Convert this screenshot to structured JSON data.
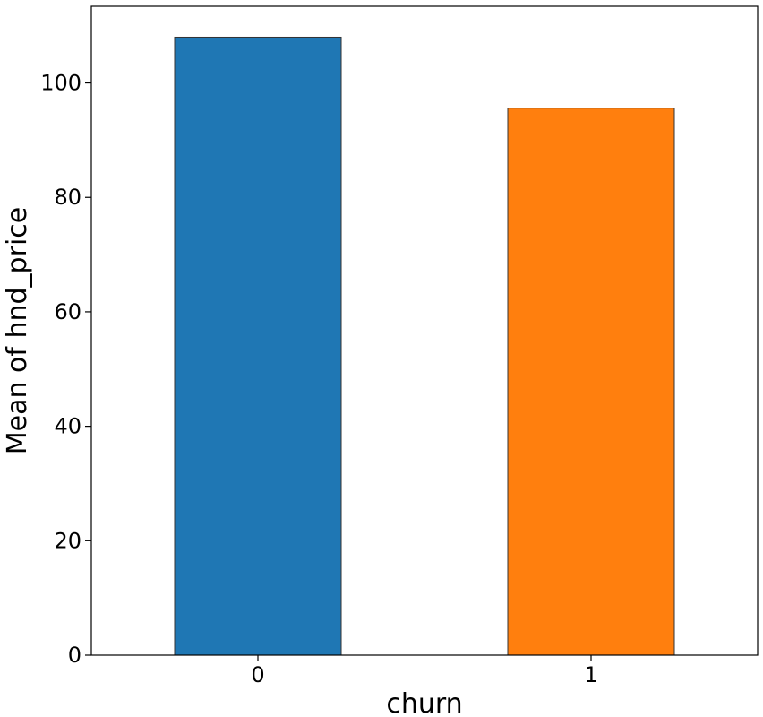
{
  "chart_data": {
    "type": "bar",
    "categories": [
      "0",
      "1"
    ],
    "values": [
      108.0,
      95.6
    ],
    "colors": [
      "#1f77b4",
      "#ff7f0e"
    ],
    "title": "",
    "xlabel": "churn",
    "ylabel": "Mean of hnd_price",
    "ylim": [
      0,
      113.4
    ],
    "yticks": [
      0,
      20,
      40,
      60,
      80,
      100
    ],
    "ytick_labels": [
      "0",
      "20",
      "40",
      "60",
      "80",
      "100"
    ],
    "grid": false,
    "legend": false
  }
}
